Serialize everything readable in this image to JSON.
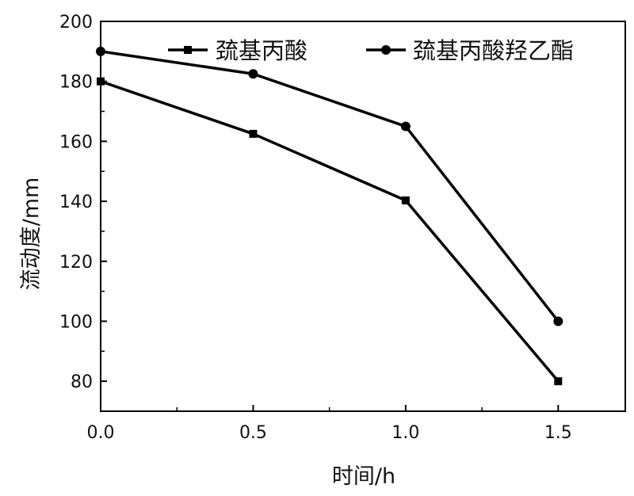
{
  "chart_data": {
    "type": "line",
    "title": "",
    "xlabel": "时间/h",
    "ylabel": "流动度/mm",
    "x": [
      0.0,
      0.5,
      1.0,
      1.5
    ],
    "xlim": [
      0.0,
      1.72
    ],
    "ylim": [
      70,
      200
    ],
    "xticks": [
      "0.0",
      "0.5",
      "1.0",
      "1.5"
    ],
    "yticks": [
      "80",
      "100",
      "120",
      "140",
      "160",
      "180",
      "200"
    ],
    "grid": false,
    "legend_position": "top-right",
    "series": [
      {
        "name": "巯基丙酸",
        "marker": "square",
        "color": "#000000",
        "values": [
          180,
          162.5,
          140.3,
          80
        ]
      },
      {
        "name": "巯基丙酸羟乙酯",
        "marker": "circle",
        "color": "#000000",
        "values": [
          190,
          182.5,
          165,
          100
        ]
      }
    ]
  }
}
